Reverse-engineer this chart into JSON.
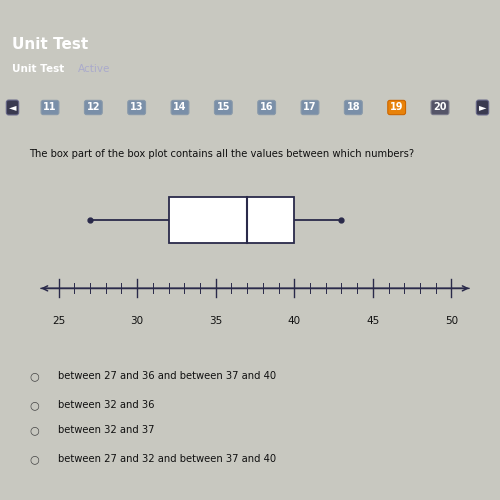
{
  "title": "Unit Test",
  "subtitle": "Unit Test",
  "subtitle2": "Active",
  "question": "The box part of the box plot contains all the values between which numbers?",
  "nav_numbers": [
    "11",
    "12",
    "13",
    "14",
    "15",
    "16",
    "17",
    "18",
    "19",
    "20"
  ],
  "nav_active": "19",
  "nav_active_color": "#e8820a",
  "nav_inactive_color": "#7a8fa8",
  "nav_bg_dark": "#2a2a40",
  "bp_min": 27,
  "bp_q1": 32,
  "bp_median": 37,
  "bp_q3": 40,
  "bp_max": 43,
  "axis_min": 23.5,
  "axis_max": 51.5,
  "axis_ticks": [
    25,
    30,
    35,
    40,
    45,
    50
  ],
  "choices": [
    "between 27 and 36 and between 37 and 40",
    "between 32 and 36",
    "between 32 and 37",
    "between 27 and 32 and between 37 and 40"
  ],
  "bg_header": "#2e2e4a",
  "bg_topbar": "#3a3060",
  "bg_body": "#c8c8c0",
  "bg_card": "#e8e8e2",
  "text_color": "#111111",
  "title_color": "#ffffff",
  "box_color": "#ffffff",
  "box_edge_color": "#2a2a4a",
  "whisker_color": "#2a2a4a",
  "axis_color": "#2a2a4a"
}
